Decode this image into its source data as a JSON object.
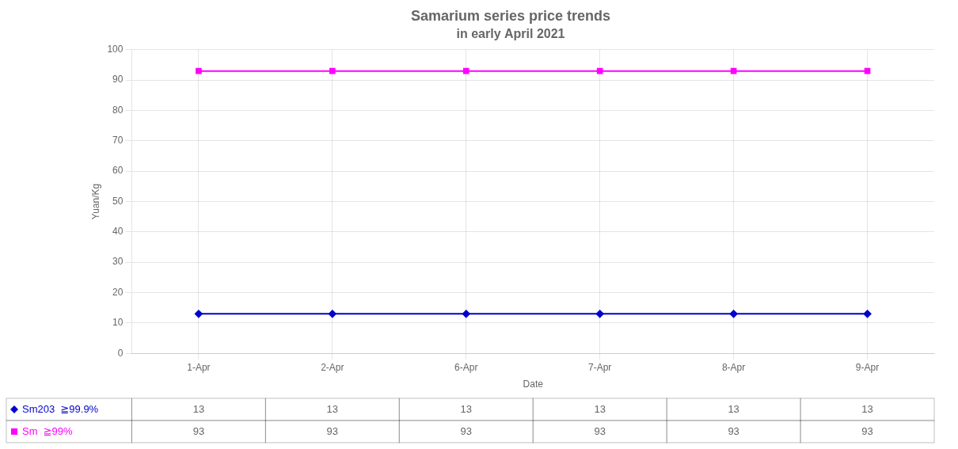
{
  "chart_data": {
    "type": "line",
    "title": "Samarium series price trends",
    "subtitle": "in early April 2021",
    "xlabel": "Date",
    "ylabel": "Yuan/Kg",
    "categories": [
      "1-Apr",
      "2-Apr",
      "6-Apr",
      "7-Apr",
      "8-Apr",
      "9-Apr"
    ],
    "series": [
      {
        "name": "Sm203  ≧99.9%",
        "color": "#0000CD",
        "marker": "diamond",
        "values": [
          13,
          13,
          13,
          13,
          13,
          13
        ]
      },
      {
        "name": "Sm  ≧99%",
        "color": "#FF00FF",
        "marker": "square",
        "values": [
          93,
          93,
          93,
          93,
          93,
          93
        ]
      }
    ],
    "ylim": [
      0,
      100
    ],
    "yticks": [
      0,
      10,
      20,
      30,
      40,
      50,
      60,
      70,
      80,
      90,
      100
    ],
    "grid": true
  }
}
